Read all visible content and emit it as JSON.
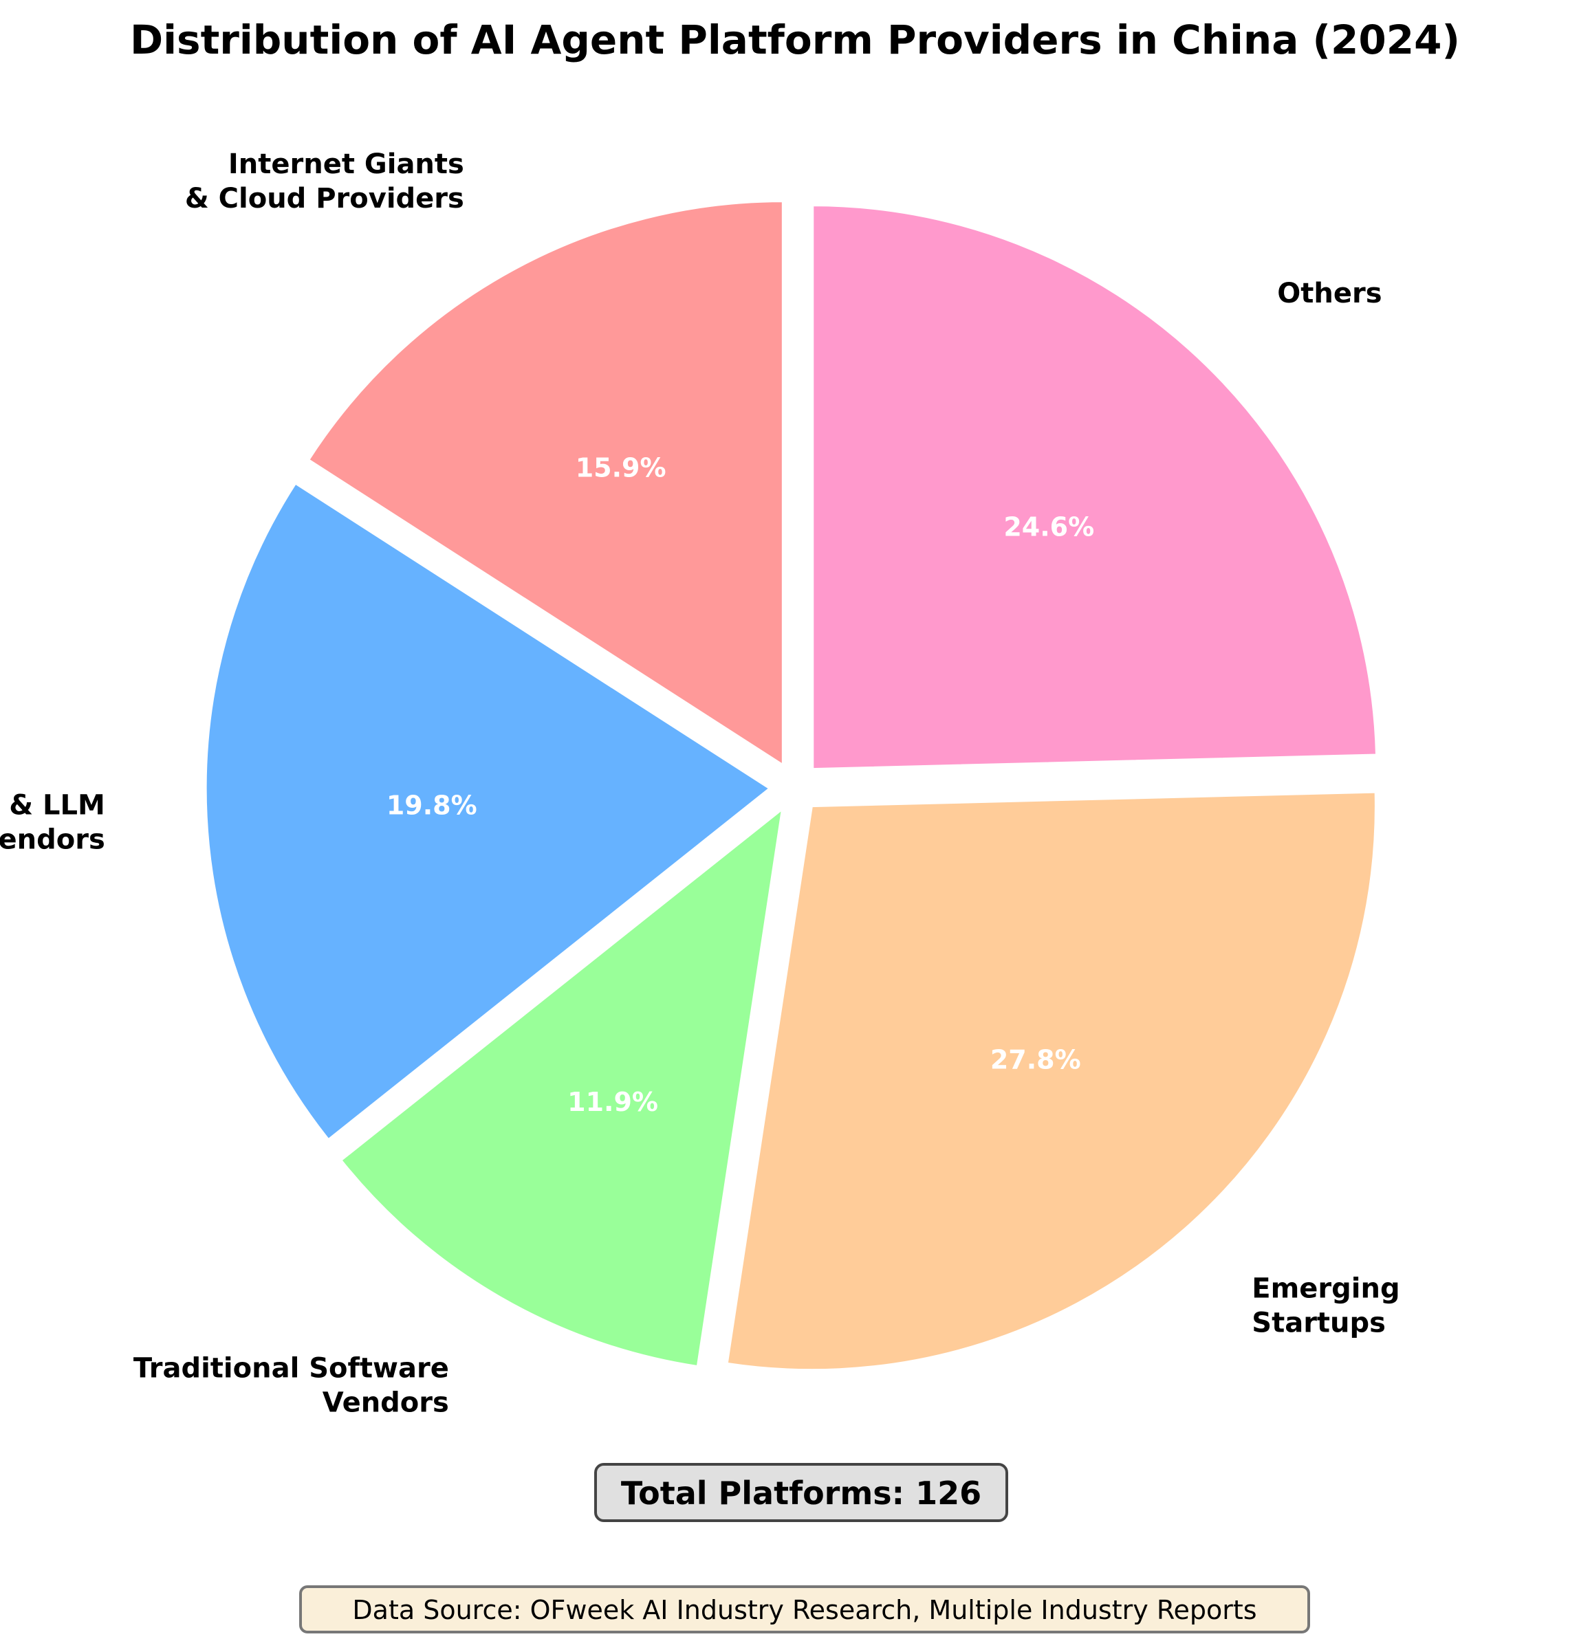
{
  "chart_data": {
    "type": "pie",
    "title": "Distribution of AI Agent Platform Providers in China (2024)",
    "start_angle_deg": 90,
    "direction": "counterclockwise",
    "slices": [
      {
        "label": "Internet Giants\n& Cloud Providers",
        "value": 15.9,
        "pct_label": "15.9%",
        "color": "#FF9999"
      },
      {
        "label": "AI & LLM\nVendors",
        "value": 19.8,
        "pct_label": "19.8%",
        "color": "#66B2FF"
      },
      {
        "label": "Traditional Software\nVendors",
        "value": 11.9,
        "pct_label": "11.9%",
        "color": "#99FF99"
      },
      {
        "label": "Emerging\nStartups",
        "value": 27.8,
        "pct_label": "27.8%",
        "color": "#FFCC99"
      },
      {
        "label": "Others",
        "value": 24.6,
        "pct_label": "24.6%",
        "color": "#FF99CC"
      }
    ],
    "total_label": "Total Platforms: 126",
    "source_label": "Data Source: OFweek AI Industry Research, Multiple Industry Reports"
  }
}
